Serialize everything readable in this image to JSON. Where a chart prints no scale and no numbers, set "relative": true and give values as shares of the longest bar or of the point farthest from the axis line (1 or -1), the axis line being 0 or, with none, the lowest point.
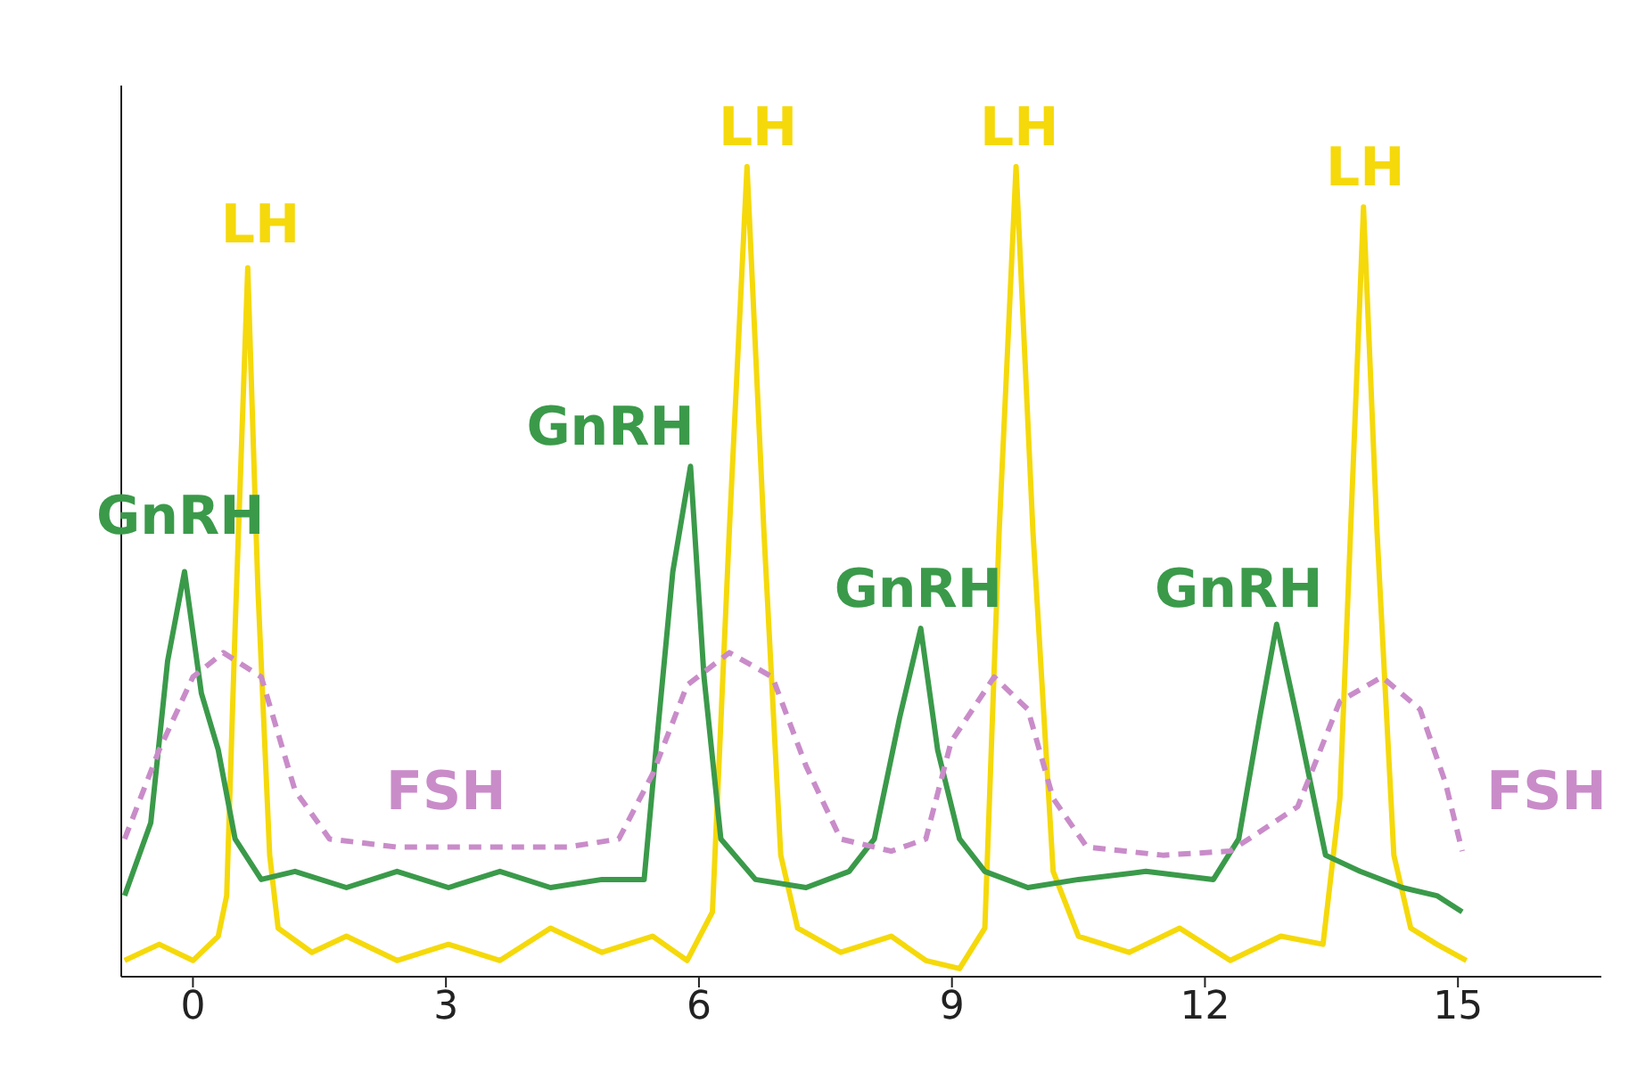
{
  "chart_data": {
    "type": "line",
    "relative": true,
    "xlim": [
      -0.85,
      16.7
    ],
    "xticks": [
      0,
      3,
      6,
      9,
      12,
      15
    ],
    "marker": "none",
    "series": [
      {
        "name": "LH",
        "color": "#f5d90a",
        "line_style": "solid",
        "x": [
          -0.81,
          -0.4,
          0,
          0.3,
          0.4,
          0.5,
          0.65,
          0.77,
          0.91,
          1.01,
          1.41,
          1.82,
          2.42,
          3.03,
          3.64,
          4.24,
          4.85,
          5.45,
          5.86,
          6.16,
          6.36,
          6.57,
          6.77,
          6.97,
          7.17,
          7.68,
          8.28,
          8.69,
          9.09,
          9.39,
          9.56,
          9.76,
          9.96,
          10.2,
          10.5,
          11.1,
          11.7,
          12.3,
          12.9,
          13.4,
          13.6,
          13.88,
          14.04,
          14.24,
          14.44,
          14.75,
          15.1
        ],
        "values": [
          0.02,
          0.04,
          0.02,
          0.05,
          0.1,
          0.43,
          0.875,
          0.48,
          0.15,
          0.06,
          0.03,
          0.05,
          0.02,
          0.04,
          0.02,
          0.06,
          0.03,
          0.05,
          0.02,
          0.08,
          0.55,
          1,
          0.55,
          0.15,
          0.06,
          0.03,
          0.05,
          0.02,
          0.01,
          0.06,
          0.55,
          1,
          0.55,
          0.13,
          0.05,
          0.03,
          0.06,
          0.02,
          0.05,
          0.04,
          0.22,
          0.95,
          0.55,
          0.15,
          0.06,
          0.04,
          0.02
        ]
      },
      {
        "name": "GnRH",
        "color": "#3a9a4a",
        "line_style": "solid",
        "x": [
          -0.81,
          -0.5,
          -0.3,
          -0.1,
          0.1,
          0.3,
          0.5,
          0.81,
          1.21,
          1.82,
          2.42,
          3.03,
          3.64,
          4.24,
          4.85,
          5.35,
          5.49,
          5.69,
          5.9,
          6.06,
          6.26,
          6.67,
          7.27,
          7.78,
          8.08,
          8.38,
          8.63,
          8.83,
          9.09,
          9.39,
          9.9,
          10.5,
          11.3,
          12.1,
          12.4,
          12.65,
          12.85,
          13.09,
          13.43,
          13.84,
          14.34,
          14.75,
          15.05
        ],
        "values": [
          0.1,
          0.19,
          0.39,
          0.5,
          0.35,
          0.28,
          0.17,
          0.12,
          0.13,
          0.11,
          0.13,
          0.11,
          0.13,
          0.11,
          0.12,
          0.12,
          0.28,
          0.5,
          0.63,
          0.37,
          0.17,
          0.12,
          0.11,
          0.13,
          0.17,
          0.32,
          0.43,
          0.28,
          0.17,
          0.13,
          0.11,
          0.12,
          0.13,
          0.12,
          0.17,
          0.32,
          0.435,
          0.32,
          0.15,
          0.13,
          0.11,
          0.1,
          0.08
        ]
      },
      {
        "name": "FSH",
        "color": "#c98cc9",
        "line_style": "dashed",
        "x": [
          -0.81,
          -0.4,
          0,
          0.36,
          0.81,
          1.21,
          1.62,
          2.42,
          4.44,
          5.05,
          5.45,
          5.86,
          6.36,
          6.87,
          7.27,
          7.68,
          8.28,
          8.69,
          8.99,
          9.5,
          9.9,
          10.2,
          10.6,
          11.5,
          12.3,
          13.1,
          13.6,
          14.1,
          14.55,
          14.85,
          15.05
        ],
        "values": [
          0.17,
          0.28,
          0.37,
          0.4,
          0.37,
          0.23,
          0.17,
          0.16,
          0.16,
          0.17,
          0.25,
          0.36,
          0.4,
          0.37,
          0.26,
          0.17,
          0.155,
          0.17,
          0.29,
          0.37,
          0.33,
          0.22,
          0.16,
          0.15,
          0.155,
          0.21,
          0.34,
          0.37,
          0.33,
          0.24,
          0.155
        ]
      }
    ],
    "annotations": [
      "LH",
      "LH",
      "LH",
      "GnRH",
      "GnRH",
      "GnRH",
      "FSH"
    ]
  }
}
